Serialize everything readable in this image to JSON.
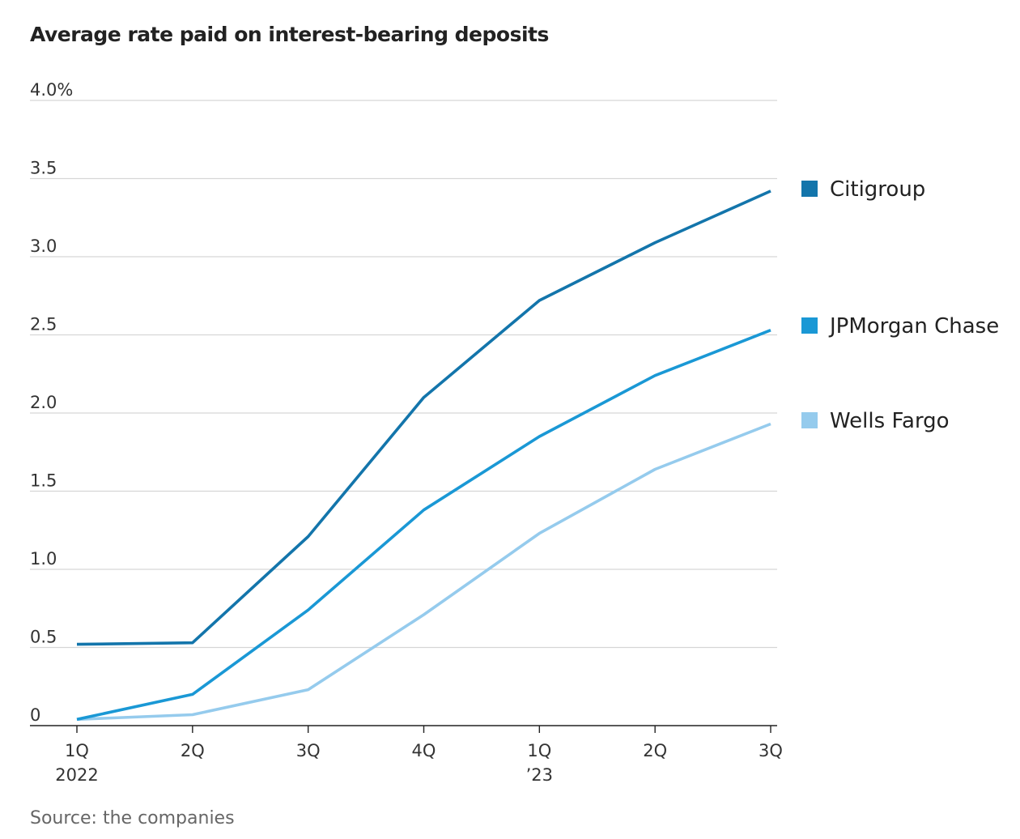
{
  "chart_data": {
    "type": "line",
    "title": "Average rate paid on interest-bearing deposits",
    "source": "Source: the companies",
    "xlabel": "",
    "ylabel": "",
    "ylim": [
      0,
      4.0
    ],
    "y_ticks": [
      {
        "value": 0,
        "label": "0"
      },
      {
        "value": 0.5,
        "label": "0.5"
      },
      {
        "value": 1.0,
        "label": "1.0"
      },
      {
        "value": 1.5,
        "label": "1.5"
      },
      {
        "value": 2.0,
        "label": "2.0"
      },
      {
        "value": 2.5,
        "label": "2.5"
      },
      {
        "value": 3.0,
        "label": "3.0"
      },
      {
        "value": 3.5,
        "label": "3.5"
      },
      {
        "value": 4.0,
        "label": "4.0%"
      }
    ],
    "categories": [
      "1Q 2022",
      "2Q 2022",
      "3Q 2022",
      "4Q 2022",
      "1Q 2023",
      "2Q 2023",
      "3Q 2023"
    ],
    "x_tick_labels": [
      {
        "line1": "1Q",
        "line2": "2022"
      },
      {
        "line1": "2Q",
        "line2": ""
      },
      {
        "line1": "3Q",
        "line2": ""
      },
      {
        "line1": "4Q",
        "line2": ""
      },
      {
        "line1": "1Q",
        "line2": "’23"
      },
      {
        "line1": "2Q",
        "line2": ""
      },
      {
        "line1": "3Q",
        "line2": ""
      }
    ],
    "grid": true,
    "legend_position": "right",
    "series": [
      {
        "name": "Citigroup",
        "color": "#1375ab",
        "values": [
          0.52,
          0.53,
          1.21,
          2.1,
          2.72,
          3.09,
          3.42
        ]
      },
      {
        "name": "JPMorgan Chase",
        "color": "#1a98d5",
        "values": [
          0.04,
          0.2,
          0.74,
          1.38,
          1.85,
          2.24,
          2.53
        ]
      },
      {
        "name": "Wells Fargo",
        "color": "#95cbed",
        "values": [
          0.04,
          0.07,
          0.23,
          0.71,
          1.23,
          1.64,
          1.93
        ]
      }
    ]
  }
}
